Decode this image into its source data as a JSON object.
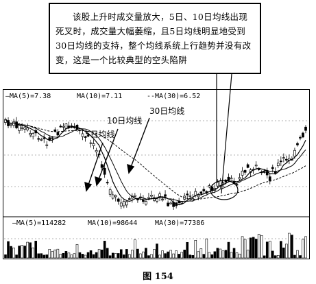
{
  "callout": {
    "text": "该股上升时成交量放大，5日、10日均线出现死叉时，成交量大幅萎缩，且5日均线明显地受到30日均线的支持，整个均线系统上行趋势并没有改变，这是一个比较典型的空头陷阱"
  },
  "chart_data": {
    "type": "line",
    "price_panel": {
      "legend": [
        {
          "name": "MA(5)",
          "value": "7.38"
        },
        {
          "name": "MA(10)",
          "value": "7.11"
        },
        {
          "name": "MA(30)",
          "value": "6.52"
        }
      ],
      "annotations": [
        "5日均线",
        "10日均线",
        "30日均线"
      ]
    },
    "volume_panel": {
      "legend": [
        {
          "name": "MA(5)",
          "value": "114282"
        },
        {
          "name": "MA(10)",
          "value": "98644"
        },
        {
          "name": "MA(30)",
          "value": "77386"
        }
      ]
    }
  },
  "caption": "图 154"
}
